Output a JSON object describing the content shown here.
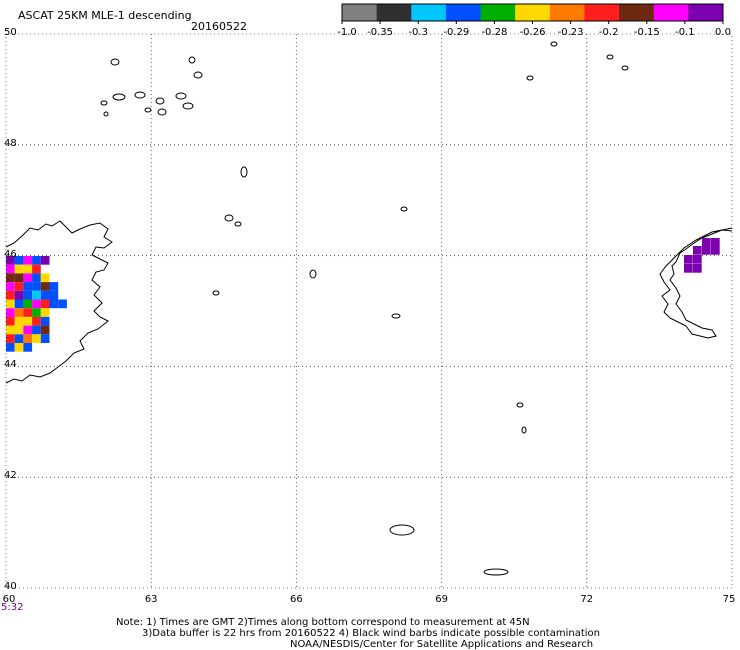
{
  "header": {
    "title": "ASCAT 25KM MLE-1 descending",
    "date": "20160522"
  },
  "colorbar": {
    "labels": [
      "-1.0",
      "-0.35",
      "-0.3",
      "-0.29",
      "-0.28",
      "-0.26",
      "-0.23",
      "-0.2",
      "-0.15",
      "-0.1",
      "0.0"
    ],
    "colors": [
      "#808080",
      "#303030",
      "#00c8ff",
      "#0050ff",
      "#00b000",
      "#ffd800",
      "#ff7a00",
      "#ff1e1e",
      "#6e2a10",
      "#ff00ff",
      "#7a00b0"
    ]
  },
  "axes": {
    "lat_labels": [
      "50",
      "48",
      "46",
      "44",
      "42",
      "40"
    ],
    "lon_labels": [
      "60",
      "63",
      "66",
      "69",
      "72",
      "75"
    ],
    "first_time": "5:32"
  },
  "footer": {
    "line1": "Note: 1) Times are GMT 2)Times along bottom correspond to measurement at 45N",
    "line2": "3)Data buffer is 22 hrs from 20160522 4) Black wind barbs indicate possible contamination",
    "line3": "NOAA/NESDIS/Center for Satellite Applications and Research"
  },
  "map": {
    "lat_range": [
      40,
      50
    ],
    "lon_range": [
      60,
      75
    ],
    "grid": "dotted"
  }
}
